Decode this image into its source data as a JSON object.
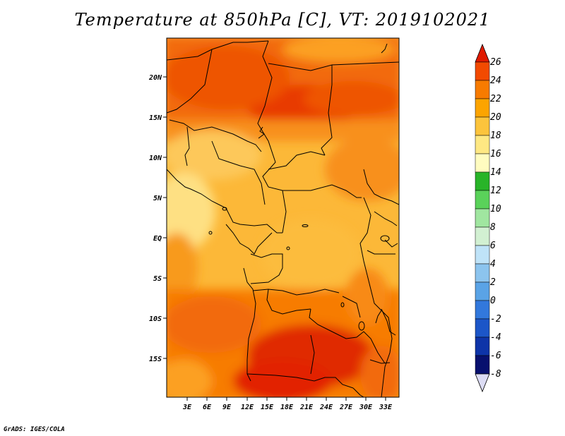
{
  "title": "Temperature at 850hPa [C], VT: 2019102021",
  "credit": "GrADS: IGES/COLA",
  "map": {
    "lon_labels": [
      "3E",
      "6E",
      "9E",
      "12E",
      "15E",
      "18E",
      "21E",
      "24E",
      "27E",
      "30E",
      "33E"
    ],
    "lat_labels": [
      "20N",
      "15N",
      "10N",
      "5N",
      "EQ",
      "5S",
      "10S",
      "15S"
    ]
  },
  "colorbar": {
    "labels": [
      "26",
      "24",
      "22",
      "20",
      "18",
      "16",
      "14",
      "12",
      "10",
      "8",
      "6",
      "4",
      "2",
      "0",
      "-2",
      "-4",
      "-6",
      "-8"
    ],
    "colors": [
      "#e01a00",
      "#f24a00",
      "#f77b00",
      "#fca400",
      "#fcc43c",
      "#fee883",
      "#fffcc0",
      "#28b428",
      "#5ad25a",
      "#a0e6a0",
      "#d2f0d2",
      "#bfe3f8",
      "#8cc4ee",
      "#5aa3e6",
      "#3278dc",
      "#1c56c8",
      "#0e34a8",
      "#08106e",
      "#dcdcf4"
    ]
  }
}
